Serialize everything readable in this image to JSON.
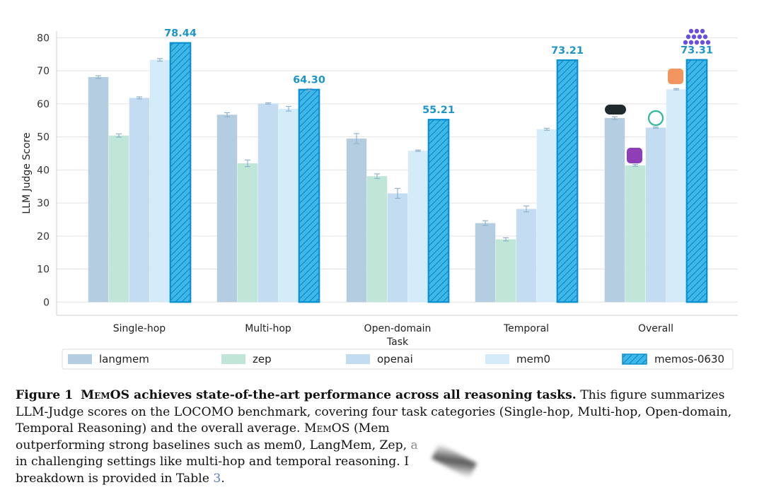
{
  "chart_data": {
    "type": "bar",
    "ylabel": "LLM Judge Score",
    "xlabel": "Task",
    "ylim": [
      -4,
      82
    ],
    "yticks": [
      0,
      10,
      20,
      30,
      40,
      50,
      60,
      70,
      80
    ],
    "categories": [
      "Single-hop",
      "Multi-hop",
      "Open-domain",
      "Temporal",
      "Overall"
    ],
    "series": [
      {
        "name": "langmem",
        "color": "#b5cde0",
        "values": [
          68.1,
          56.7,
          49.5,
          23.9,
          55.7
        ],
        "errors": [
          0.4,
          0.6,
          1.5,
          0.7,
          0.4
        ]
      },
      {
        "name": "zep",
        "color": "#bfe6d6",
        "values": [
          50.4,
          42.0,
          38.1,
          19.0,
          41.4
        ],
        "errors": [
          0.5,
          1.0,
          0.7,
          0.5,
          0.3
        ]
      },
      {
        "name": "openai",
        "color": "#c3dcf2",
        "values": [
          61.8,
          60.1,
          32.9,
          28.2,
          52.8
        ],
        "errors": [
          0.3,
          0.2,
          1.5,
          0.9,
          0.2
        ]
      },
      {
        "name": "mem0",
        "color": "#d4ebfa",
        "values": [
          73.3,
          58.5,
          45.8,
          52.3,
          64.4
        ],
        "errors": [
          0.4,
          0.7,
          0.2,
          0.3,
          0.2
        ]
      },
      {
        "name": "memos-0630",
        "color": "#3bb9ea",
        "values": [
          78.44,
          64.3,
          55.21,
          73.21,
          73.31
        ],
        "errors": [
          0.0,
          0.3,
          0.0,
          0.0,
          0.0
        ],
        "hatched": true
      }
    ],
    "value_labels": [
      "78.44",
      "64.30",
      "55.21",
      "73.21",
      "73.31"
    ],
    "legend_position": "bottom",
    "grid": true
  },
  "caption": {
    "fig_label": "Figure 1",
    "headline_pre": "M",
    "headline_sc": "em",
    "headline_post": "OS achieves state-of-the-art performance across all reasoning tasks.",
    "line1_rest": " This figure summarizes",
    "line2": "LLM-Judge scores on the LOCOMO benchmark, covering four task categories (Single-hop, Multi-hop, Open-domain,",
    "line3_pre": "Temporal Reasoning) and the overall average. ",
    "line3_memos_pre": "M",
    "line3_memos_sc": "em",
    "line3_memos_post": "OS (Mem",
    "line4": "outperforming strong baselines such as mem0, LangMem, Zep, a",
    "line5": "in challenging settings like multi-hop and temporal reasoning. I",
    "line6_pre": "breakdown is provided in Table ",
    "line6_ref": "3",
    "line6_post": "."
  }
}
